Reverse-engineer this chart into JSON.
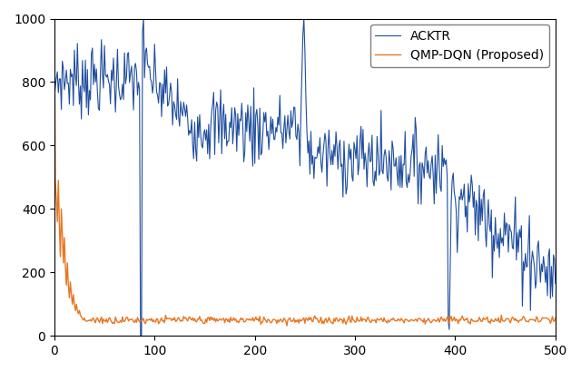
{
  "acktr_color": "#1f4e9e",
  "qmp_color": "#e87722",
  "legend_labels": [
    "ACKTR",
    "QMP-DQN (Proposed)"
  ],
  "xlim": [
    0,
    500
  ],
  "ylim": [
    0,
    1000
  ],
  "yticks": [
    0,
    200,
    400,
    600,
    800,
    1000
  ],
  "xticks": [
    0,
    100,
    200,
    300,
    400,
    500
  ],
  "linewidth_acktr": 0.8,
  "linewidth_qmp": 1.0,
  "n_points": 500,
  "seed": 7
}
